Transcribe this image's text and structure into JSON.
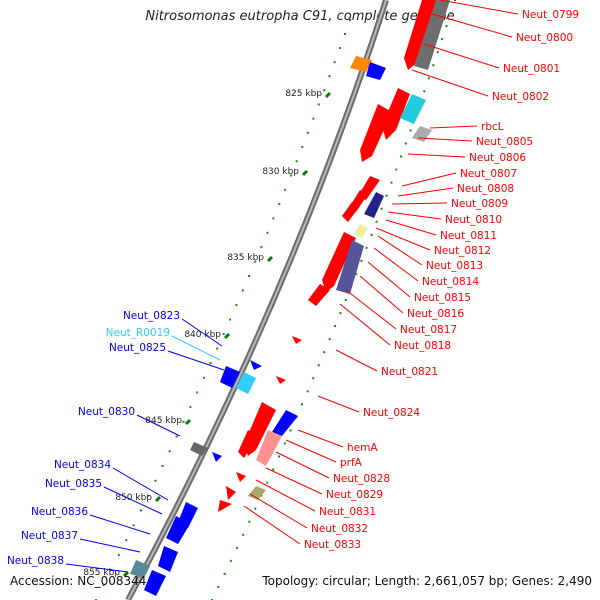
{
  "title": "Nitrosomonas eutropha C91, complete genome",
  "accession_label": "Accession: NC_008344",
  "summary_label": "Topology: circular; Length: 2,661,057 bp; Genes: 2,490",
  "colors": {
    "forward": "#ff0000",
    "reverse": "#0000ff",
    "rna": "#33ccff",
    "backbone": "#888888",
    "tick": "#0a7a0a",
    "dot": "#1a8a1a"
  },
  "scale_ticks": [
    {
      "label": "825 kbp"
    },
    {
      "label": "830 kbp"
    },
    {
      "label": "835 kbp"
    },
    {
      "label": "840 kbp"
    },
    {
      "label": "845 kbp"
    },
    {
      "label": "850 kbp"
    },
    {
      "label": "855 kbp"
    }
  ],
  "forward_genes": [
    {
      "label": "Neut_0799"
    },
    {
      "label": "Neut_0800"
    },
    {
      "label": "Neut_0801"
    },
    {
      "label": "Neut_0802"
    },
    {
      "label": "rbcL"
    },
    {
      "label": "Neut_0805"
    },
    {
      "label": "Neut_0806"
    },
    {
      "label": "Neut_0807"
    },
    {
      "label": "Neut_0808"
    },
    {
      "label": "Neut_0809"
    },
    {
      "label": "Neut_0810"
    },
    {
      "label": "Neut_0811"
    },
    {
      "label": "Neut_0812"
    },
    {
      "label": "Neut_0813"
    },
    {
      "label": "Neut_0814"
    },
    {
      "label": "Neut_0815"
    },
    {
      "label": "Neut_0816"
    },
    {
      "label": "Neut_0817"
    },
    {
      "label": "Neut_0818"
    },
    {
      "label": "Neut_0821"
    },
    {
      "label": "Neut_0824"
    },
    {
      "label": "hemA"
    },
    {
      "label": "prfA"
    },
    {
      "label": "Neut_0828"
    },
    {
      "label": "Neut_0829"
    },
    {
      "label": "Neut_0831"
    },
    {
      "label": "Neut_0832"
    },
    {
      "label": "Neut_0833"
    }
  ],
  "reverse_genes": [
    {
      "label": "Neut_0823",
      "type": "gene"
    },
    {
      "label": "Neut_R0019",
      "type": "rna"
    },
    {
      "label": "Neut_0825",
      "type": "gene"
    },
    {
      "label": "Neut_0830",
      "type": "gene"
    },
    {
      "label": "Neut_0834",
      "type": "gene"
    },
    {
      "label": "Neut_0835",
      "type": "gene"
    },
    {
      "label": "Neut_0836",
      "type": "gene"
    },
    {
      "label": "Neut_0837",
      "type": "gene"
    },
    {
      "label": "Neut_0838",
      "type": "gene"
    }
  ]
}
